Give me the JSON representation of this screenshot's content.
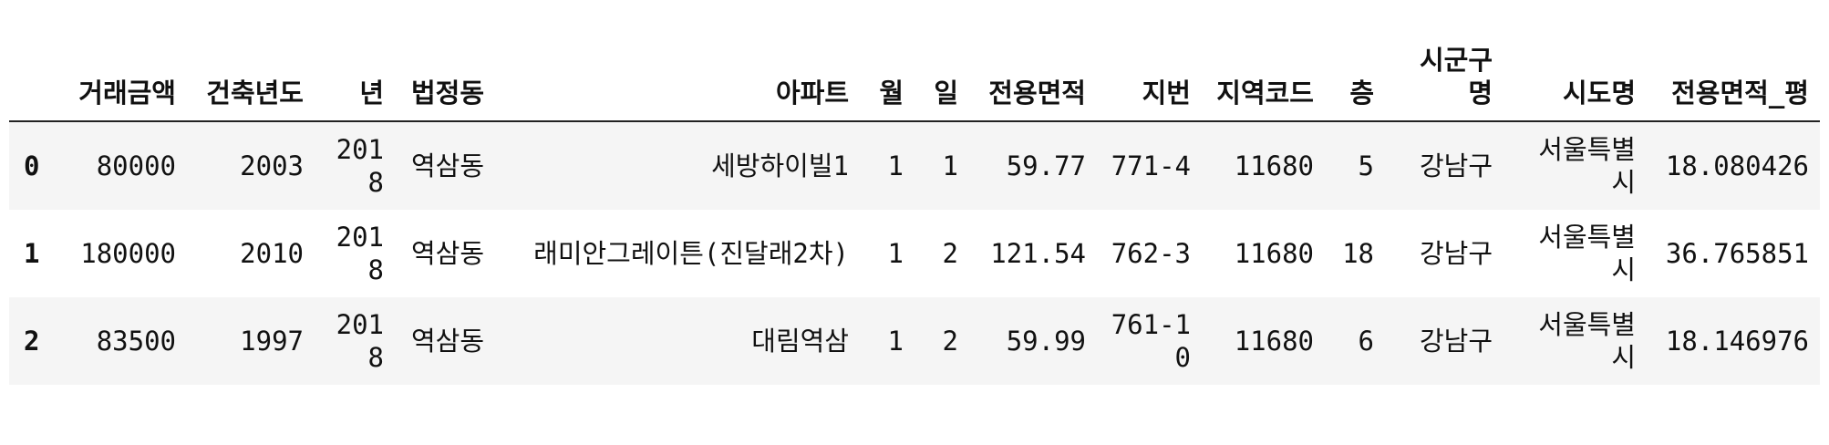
{
  "table": {
    "columns": [
      "",
      "거래금액",
      "건축년도",
      "년",
      "법정동",
      "아파트",
      "월",
      "일",
      "전용면적",
      "지번",
      "지역코드",
      "층",
      "시군구명",
      "시도명",
      "전용면적_평"
    ],
    "rows": [
      [
        "0",
        "80000",
        "2003",
        "2018",
        "역삼동",
        "세방하이빌1",
        "1",
        "1",
        "59.77",
        "771-4",
        "11680",
        "5",
        "강남구",
        "서울특별시",
        "18.080426"
      ],
      [
        "1",
        "180000",
        "2010",
        "2018",
        "역삼동",
        "래미안그레이튼(진달래2차)",
        "1",
        "2",
        "121.54",
        "762-3",
        "11680",
        "18",
        "강남구",
        "서울특별시",
        "36.765851"
      ],
      [
        "2",
        "83500",
        "1997",
        "2018",
        "역삼동",
        "대림역삼",
        "1",
        "2",
        "59.99",
        "761-10",
        "11680",
        "6",
        "강남구",
        "서울특별시",
        "18.146976"
      ]
    ]
  },
  "colors": {
    "stripe": "#f5f5f5",
    "header_border": "#222222",
    "text": "#111111"
  }
}
